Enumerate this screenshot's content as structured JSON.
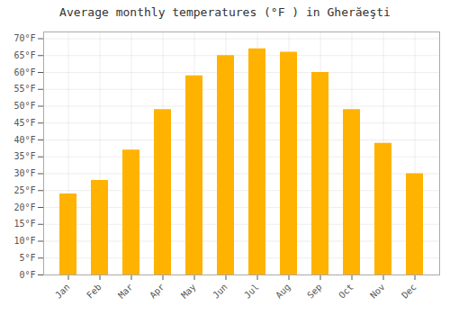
{
  "chart_data": {
    "type": "bar",
    "title": "Average monthly temperatures (°F ) in Gherăeşti",
    "categories": [
      "Jan",
      "Feb",
      "Mar",
      "Apr",
      "May",
      "Jun",
      "Jul",
      "Aug",
      "Sep",
      "Oct",
      "Nov",
      "Dec"
    ],
    "values": [
      24,
      28,
      37,
      49,
      59,
      65,
      67,
      66,
      60,
      49,
      39,
      30
    ],
    "color": "#FFB300",
    "ylim": [
      0,
      72
    ],
    "yticks": [
      {
        "value": 0,
        "label": "0°F"
      },
      {
        "value": 5,
        "label": "5°F"
      },
      {
        "value": 10,
        "label": "10°F"
      },
      {
        "value": 15,
        "label": "15°F"
      },
      {
        "value": 20,
        "label": "20°F"
      },
      {
        "value": 25,
        "label": "25°F"
      },
      {
        "value": 30,
        "label": "30°F"
      },
      {
        "value": 35,
        "label": "35°F"
      },
      {
        "value": 40,
        "label": "40°F"
      },
      {
        "value": 45,
        "label": "45°F"
      },
      {
        "value": 50,
        "label": "50°F"
      },
      {
        "value": 55,
        "label": "55°F"
      },
      {
        "value": 60,
        "label": "60°F"
      },
      {
        "value": 65,
        "label": "65°F"
      },
      {
        "value": 70,
        "label": "70°F"
      }
    ],
    "grid": true
  }
}
